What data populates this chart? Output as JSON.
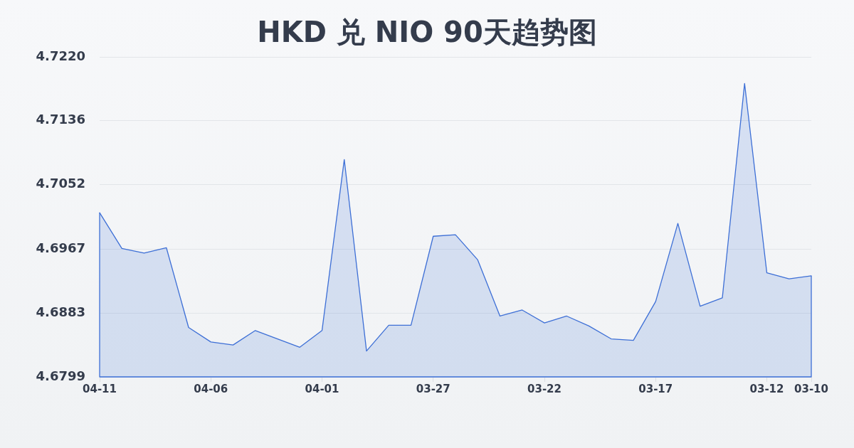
{
  "chart_data": {
    "type": "area",
    "title": "HKD 兑 NIO 90天趋势图",
    "categories": [
      "04-11",
      null,
      null,
      null,
      null,
      "04-06",
      null,
      null,
      null,
      null,
      "04-01",
      null,
      null,
      null,
      null,
      "03-27",
      null,
      null,
      null,
      null,
      "03-22",
      null,
      null,
      null,
      null,
      "03-17",
      null,
      null,
      null,
      null,
      "03-12",
      null,
      "03-10"
    ],
    "values": [
      4.7015,
      4.6968,
      4.6962,
      4.6969,
      4.6864,
      4.6845,
      4.6841,
      4.686,
      4.6849,
      4.6838,
      4.686,
      4.7085,
      4.6833,
      4.6867,
      4.6867,
      4.6984,
      4.6986,
      4.6953,
      4.6879,
      4.6887,
      4.687,
      4.6879,
      4.6866,
      4.6849,
      4.6847,
      4.6898,
      4.7001,
      4.6892,
      4.6903,
      4.7185,
      4.6936,
      4.6928,
      4.6932
    ],
    "color": "#3d6fd6",
    "ylim": [
      4.6799,
      4.722
    ],
    "yticks": [
      4.6799,
      4.6883,
      4.6967,
      4.7052,
      4.7136,
      {
        "value": 4.722,
        "label": "4.7220"
      }
    ],
    "grid": "y",
    "marker": "none"
  }
}
